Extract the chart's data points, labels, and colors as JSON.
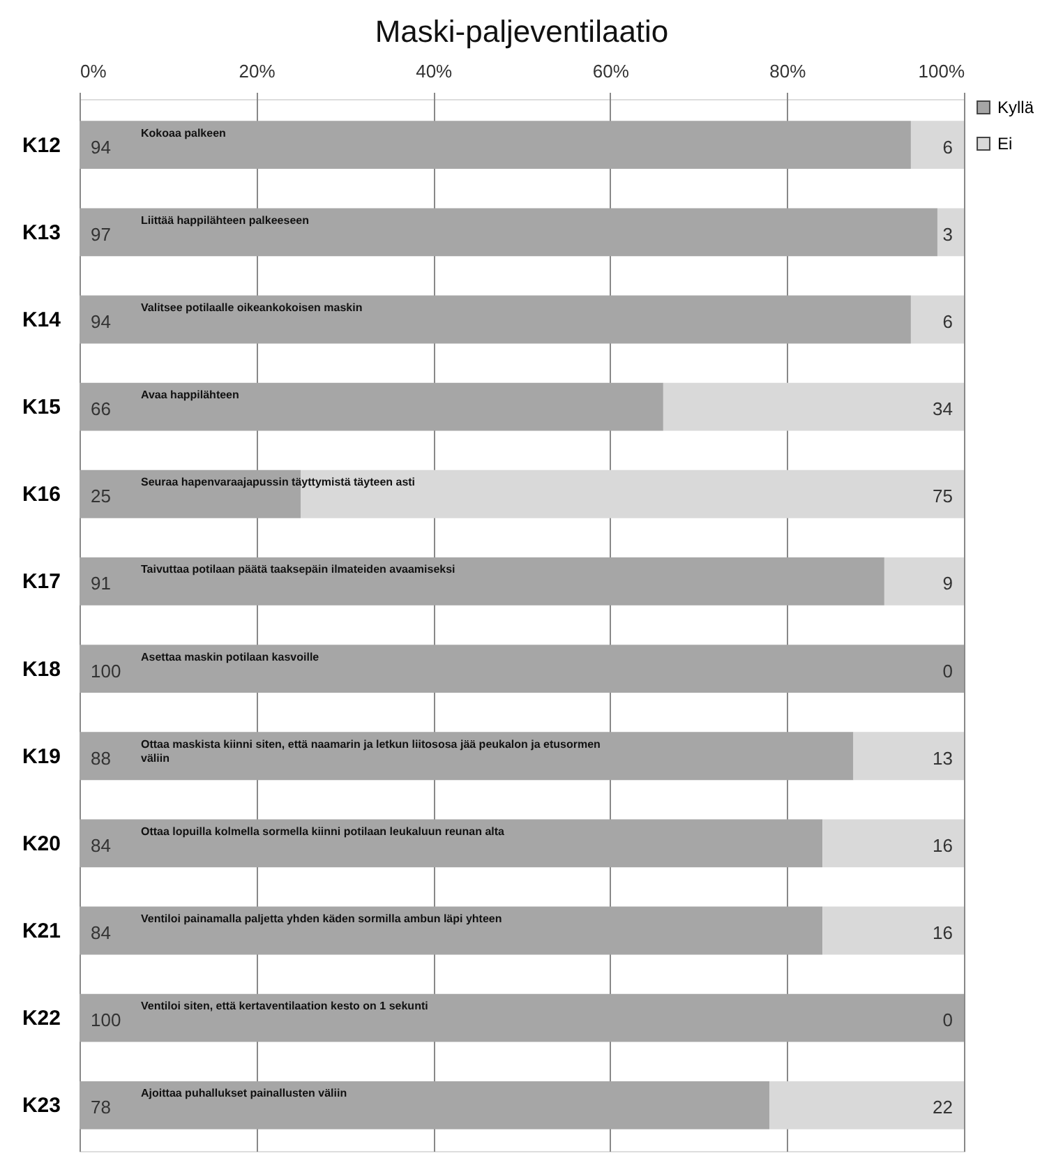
{
  "chart_data": {
    "type": "bar",
    "orientation": "horizontal",
    "stacked": true,
    "title": "Maski-paljeventilaatio",
    "categories": [
      "K12",
      "K13",
      "K14",
      "K15",
      "K16",
      "K17",
      "K18",
      "K19",
      "K20",
      "K21",
      "K22",
      "K23"
    ],
    "series": [
      {
        "name": "Kyllä",
        "color": "#a6a6a6",
        "values": [
          94,
          97,
          94,
          66,
          25,
          91,
          100,
          87.5,
          84,
          84,
          100,
          78
        ],
        "value_labels": [
          "94",
          "97",
          "94",
          "66",
          "25",
          "91",
          "100",
          "88",
          "84",
          "84",
          "100",
          "78"
        ]
      },
      {
        "name": "Ei",
        "color": "#d9d9d9",
        "values": [
          6,
          3,
          6,
          34,
          75,
          9,
          0,
          12.5,
          16,
          16,
          0,
          22
        ],
        "value_labels": [
          "6",
          "3",
          "6",
          "34",
          "75",
          "9",
          "0",
          "13",
          "16",
          "16",
          "0",
          "22"
        ]
      }
    ],
    "xlim": [
      0,
      100
    ],
    "xticks": [
      {
        "value": 0,
        "label": "0%"
      },
      {
        "value": 20,
        "label": "20%"
      },
      {
        "value": 40,
        "label": "40%"
      },
      {
        "value": 60,
        "label": "60%"
      },
      {
        "value": 80,
        "label": "80%"
      },
      {
        "value": 100,
        "label": "100%"
      }
    ],
    "grid": "x",
    "legend": "right",
    "annotations": [
      "Kokoaa palkeen",
      "Liittää happilähteen palkeeseen",
      "Valitsee potilaalle oikeankokoisen maskin",
      "Avaa happilähteen",
      "Seuraa hapenvaraajapussin täyttymistä täyteen asti",
      "Taivuttaa potilaan päätä taaksepäin ilmateiden avaamiseksi",
      "Asettaa maskin potilaan kasvoille",
      "Ottaa maskista kiinni siten, että naamarin ja letkun liitososa jää peukalon ja etusormen\nväliin",
      "Ottaa lopuilla kolmella sormella kiinni potilaan leukaluun reunan alta",
      "Ventiloi painamalla paljetta yhden käden sormilla ambun läpi yhteen",
      "Ventiloi siten, että kertaventilaation kesto on 1 sekunti",
      "Ajoittaa puhallukset painallusten väliin"
    ]
  }
}
